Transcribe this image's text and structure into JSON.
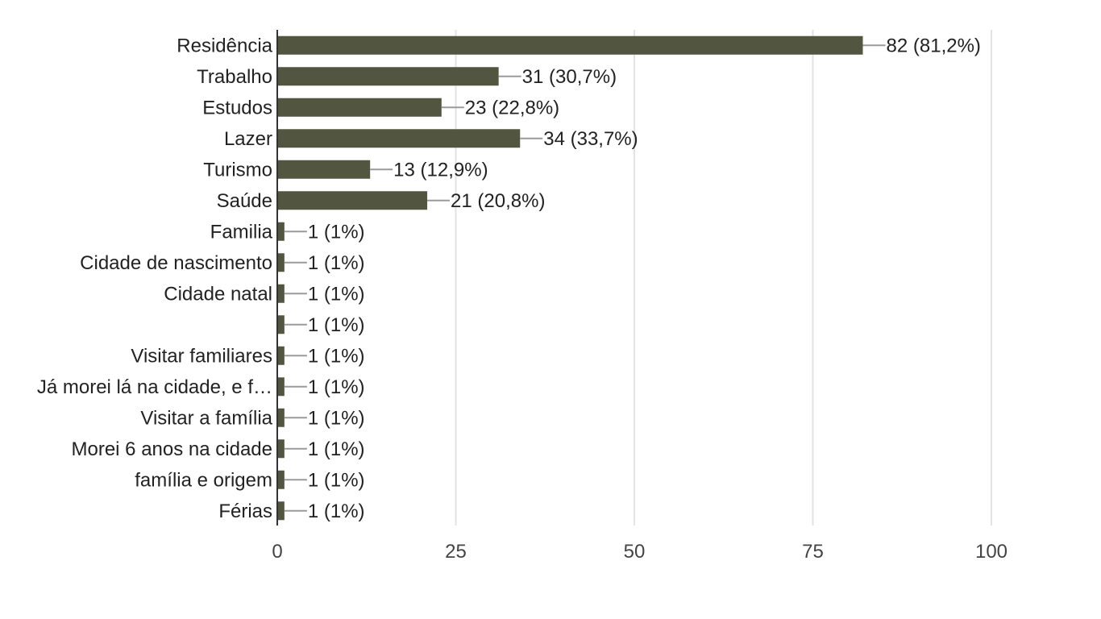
{
  "chart_data": {
    "type": "bar",
    "orientation": "horizontal",
    "categories": [
      "Residência",
      "Trabalho",
      "Estudos",
      "Lazer",
      "Turismo",
      "Saúde",
      "Familia",
      "Cidade de nascimento",
      "Cidade natal",
      "",
      "Visitar familiares",
      "Já morei lá na cidade, e f…",
      "Visitar a família",
      "Morei 6 anos na cidade",
      "família e origem",
      "Férias"
    ],
    "values": [
      82,
      31,
      23,
      34,
      13,
      21,
      1,
      1,
      1,
      1,
      1,
      1,
      1,
      1,
      1,
      1
    ],
    "value_labels": [
      "82 (81,2%)",
      "31 (30,7%)",
      "23 (22,8%)",
      "34 (33,7%)",
      "13 (12,9%)",
      "21 (20,8%)",
      "1 (1%)",
      "1 (1%)",
      "1 (1%)",
      "1 (1%)",
      "1 (1%)",
      "1 (1%)",
      "1 (1%)",
      "1 (1%)",
      "1 (1%)",
      "1 (1%)"
    ],
    "xlim": [
      0,
      100
    ],
    "x_ticks": [
      0,
      25,
      50,
      75,
      100
    ],
    "x_tick_labels": [
      "0",
      "25",
      "50",
      "75",
      "100"
    ],
    "grid": true,
    "bar_color": "#525640",
    "title": "",
    "xlabel": "",
    "ylabel": ""
  }
}
